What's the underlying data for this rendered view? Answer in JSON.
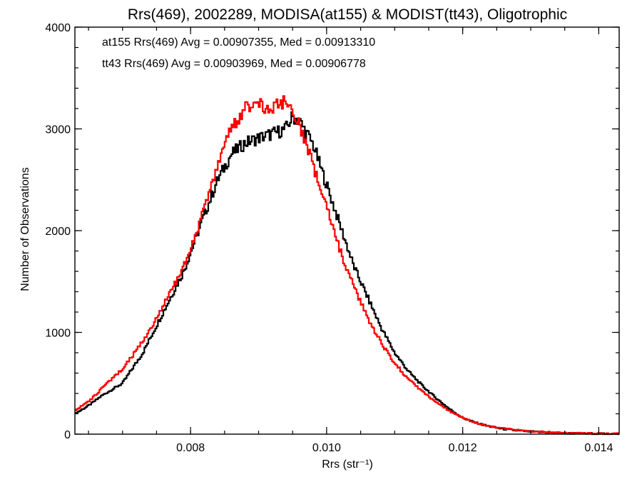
{
  "chart_data": {
    "type": "line",
    "title": "Rrs(469), 2002289, MODISA(at155) & MODIST(tt43), Oligotrophic",
    "xlabel": "Rrs (str⁻¹)",
    "ylabel": "Number of Observations",
    "xlim": [
      0.0063,
      0.0143
    ],
    "ylim": [
      0,
      4000
    ],
    "x_ticks": [
      0.008,
      0.01,
      0.012,
      0.014
    ],
    "x_tick_labels": [
      "0.008",
      "0.010",
      "0.012",
      "0.014"
    ],
    "y_ticks": [
      0,
      1000,
      2000,
      3000,
      4000
    ],
    "y_tick_labels": [
      "0",
      "1000",
      "2000",
      "3000",
      "4000"
    ],
    "grid": false,
    "legend_position": "top-left",
    "annotations": [
      {
        "text": "at155 Rrs(469) Avg = 0.00907355, Med = 0.00913310",
        "color": "#000000"
      },
      {
        "text": "tt43 Rrs(469) Avg = 0.00903969, Med = 0.00906778",
        "color": "#ff0000"
      }
    ],
    "series": [
      {
        "color": "#000000",
        "x": [
          0.0063,
          0.0065,
          0.0067,
          0.007,
          0.0073,
          0.0076,
          0.0079,
          0.0082,
          0.0084,
          0.0086,
          0.0088,
          0.009,
          0.0092,
          0.0094,
          0.0095,
          0.0096,
          0.0098,
          0.01,
          0.0102,
          0.0104,
          0.0106,
          0.0108,
          0.011,
          0.0112,
          0.0114,
          0.0116,
          0.0118,
          0.012,
          0.0122,
          0.0124,
          0.0126,
          0.0128,
          0.013,
          0.0133,
          0.0136,
          0.014,
          0.0143
        ],
        "y": [
          200,
          280,
          380,
          500,
          800,
          1200,
          1600,
          2150,
          2500,
          2750,
          2860,
          2910,
          2950,
          3000,
          3120,
          3080,
          2850,
          2450,
          2050,
          1650,
          1350,
          1050,
          800,
          620,
          480,
          360,
          250,
          160,
          110,
          75,
          50,
          35,
          25,
          15,
          8,
          5,
          3
        ]
      },
      {
        "color": "#ff0000",
        "x": [
          0.0063,
          0.0065,
          0.0067,
          0.007,
          0.0073,
          0.0076,
          0.0079,
          0.0082,
          0.0084,
          0.0086,
          0.0088,
          0.009,
          0.0092,
          0.0093,
          0.0094,
          0.0095,
          0.0096,
          0.0098,
          0.01,
          0.0102,
          0.0104,
          0.0106,
          0.0108,
          0.011,
          0.0112,
          0.0114,
          0.0116,
          0.0118,
          0.012,
          0.0122,
          0.0124,
          0.0126,
          0.0128,
          0.013,
          0.0133,
          0.0136,
          0.014,
          0.0143
        ],
        "y": [
          230,
          320,
          450,
          640,
          910,
          1260,
          1650,
          2200,
          2620,
          3000,
          3200,
          3240,
          3200,
          3270,
          3260,
          3180,
          3060,
          2650,
          2230,
          1800,
          1450,
          1150,
          900,
          700,
          540,
          420,
          320,
          230,
          160,
          110,
          75,
          55,
          40,
          28,
          18,
          10,
          5,
          3
        ]
      }
    ]
  }
}
